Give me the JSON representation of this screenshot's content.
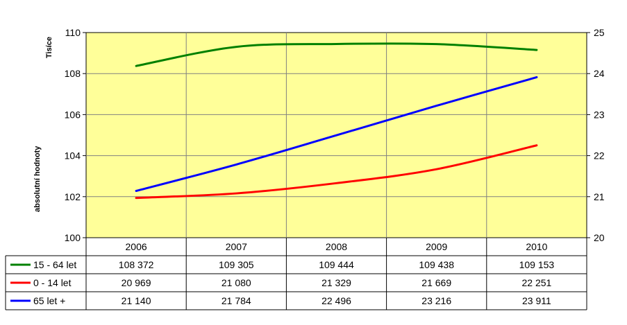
{
  "chart_data": {
    "type": "line",
    "title": "",
    "ylabel": "absolutní hodnoty",
    "yunit": "Tisíce",
    "xlabel": "",
    "categories": [
      "2006",
      "2007",
      "2008",
      "2009",
      "2010"
    ],
    "ylim": [
      100,
      110
    ],
    "yticks": [
      "100",
      "102",
      "104",
      "106",
      "108",
      "110"
    ],
    "y2lim": [
      20,
      25
    ],
    "y2ticks": [
      "20",
      "21",
      "22",
      "23",
      "24",
      "25"
    ],
    "grid": true,
    "plot_background": "#FFFF99",
    "legend_placement": "data-table-left",
    "series": [
      {
        "name": "15 - 64 let",
        "axis": "left",
        "color": "#008000",
        "values": [
          108.372,
          109.305,
          109.444,
          109.438,
          109.153
        ],
        "table_values": [
          "108 372",
          "109 305",
          "109 444",
          "109 438",
          "109 153"
        ]
      },
      {
        "name": "0 - 14 let",
        "axis": "right",
        "color": "#FF0000",
        "values": [
          20.969,
          21.08,
          21.329,
          21.669,
          22.251
        ],
        "table_values": [
          "20 969",
          "21 080",
          "21 329",
          "21 669",
          "22 251"
        ]
      },
      {
        "name": "65 let +",
        "axis": "right",
        "color": "#0000FF",
        "values": [
          21.14,
          21.784,
          22.496,
          23.216,
          23.911
        ],
        "table_values": [
          "21 140",
          "21 784",
          "22 496",
          "23 216",
          "23 911"
        ]
      }
    ]
  }
}
